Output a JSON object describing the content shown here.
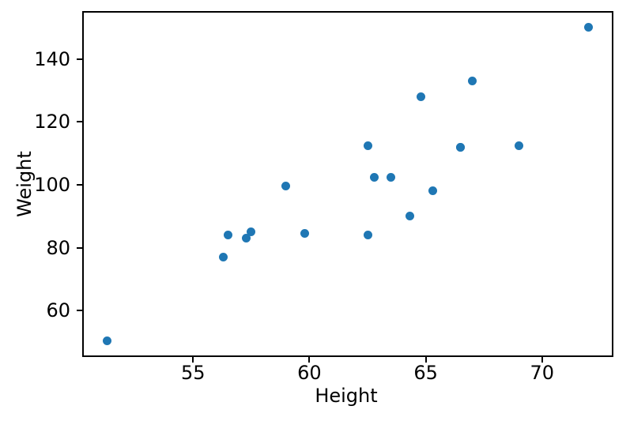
{
  "figure": {
    "background_color": "#ffffff",
    "spine_color": "#000000",
    "tick_color": "#000000",
    "text_color": "#000000"
  },
  "chart_data": {
    "type": "scatter",
    "title": "",
    "xlabel": "Height",
    "ylabel": "Weight",
    "x": [
      69.0,
      56.5,
      65.3,
      62.8,
      63.5,
      57.3,
      59.8,
      62.5,
      62.5,
      59.0,
      51.3,
      64.3,
      56.3,
      66.5,
      72.0,
      64.8,
      67.0,
      57.5,
      66.5
    ],
    "y": [
      112.5,
      84.0,
      98.0,
      102.5,
      102.5,
      83.0,
      84.5,
      112.5,
      84.0,
      99.5,
      50.5,
      90.0,
      77.0,
      112.0,
      150.0,
      128.0,
      133.0,
      85.0,
      112.0
    ],
    "xticks": [
      55,
      60,
      65,
      70
    ],
    "yticks": [
      60,
      80,
      100,
      120,
      140
    ],
    "xlim": [
      50.27,
      73.03
    ],
    "ylim": [
      45.5,
      155.0
    ],
    "marker_color": "#1f77b4",
    "marker_diameter_px": 11,
    "grid": false,
    "legend": null
  }
}
